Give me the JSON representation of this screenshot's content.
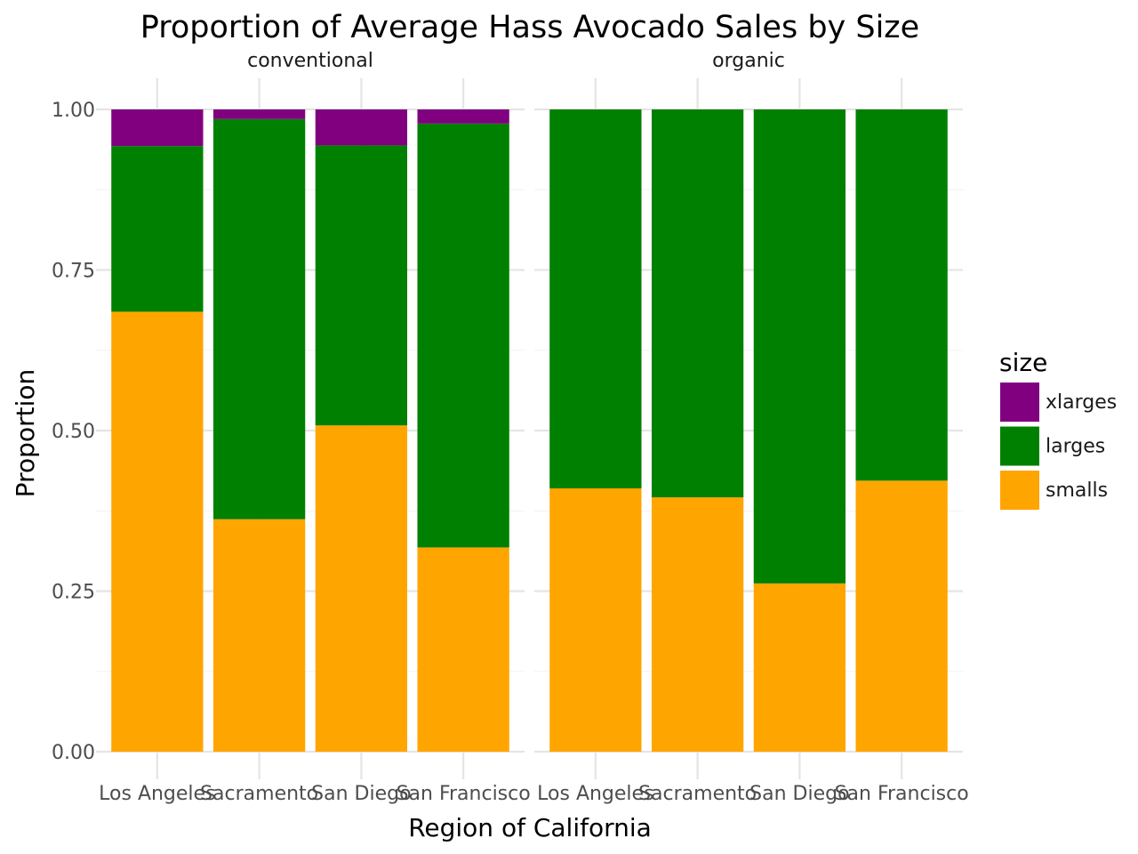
{
  "chart_data": {
    "type": "bar",
    "stacked": true,
    "title": "Proportion of Average Hass Avocado Sales by Size",
    "xlabel": "Region of California",
    "ylabel": "Proportion",
    "ylim": [
      0,
      1
    ],
    "yticks": [
      "0.00",
      "0.25",
      "0.50",
      "0.75",
      "1.00"
    ],
    "grid": true,
    "legend": {
      "title": "size",
      "position": "right",
      "entries": [
        {
          "key": "xlarges",
          "label": "xlarges",
          "color": "#800080"
        },
        {
          "key": "larges",
          "label": "larges",
          "color": "#008000"
        },
        {
          "key": "smalls",
          "label": "smalls",
          "color": "#FFA500"
        }
      ]
    },
    "stack_order": [
      "smalls",
      "larges",
      "xlarges"
    ],
    "panels": [
      {
        "name": "conventional",
        "categories": [
          "Los Angeles",
          "Sacramento",
          "San Diego",
          "San Francisco"
        ],
        "series": [
          {
            "key": "smalls",
            "values": [
              0.685,
              0.362,
              0.508,
              0.318
            ]
          },
          {
            "key": "larges",
            "values": [
              0.258,
              0.623,
              0.436,
              0.66
            ]
          },
          {
            "key": "xlarges",
            "values": [
              0.057,
              0.015,
              0.056,
              0.022
            ]
          }
        ]
      },
      {
        "name": "organic",
        "categories": [
          "Los Angeles",
          "Sacramento",
          "San Diego",
          "San Francisco"
        ],
        "series": [
          {
            "key": "smalls",
            "values": [
              0.41,
              0.396,
              0.262,
              0.422
            ]
          },
          {
            "key": "larges",
            "values": [
              0.59,
              0.604,
              0.738,
              0.578
            ]
          },
          {
            "key": "xlarges",
            "values": [
              0.0,
              0.0,
              0.0,
              0.0
            ]
          }
        ]
      }
    ]
  }
}
